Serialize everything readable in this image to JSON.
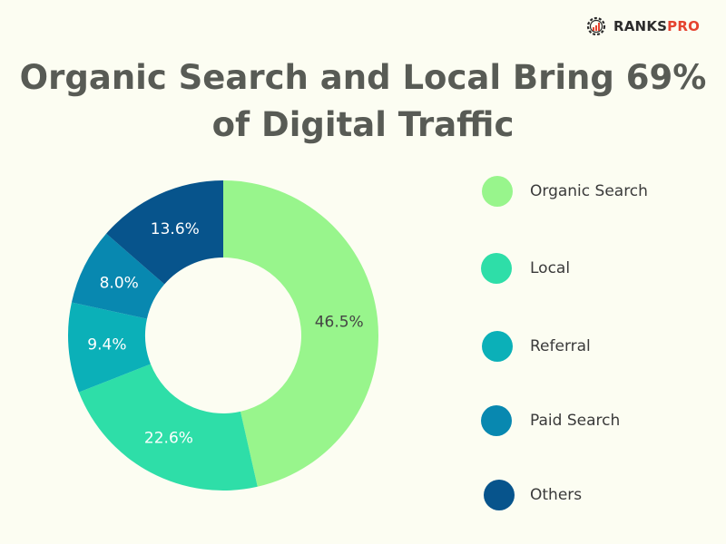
{
  "brand": {
    "name_prefix": "RANKS",
    "name_suffix": "PRO",
    "logo_icon": "gear-chart-icon",
    "accent_color": "#e5432f"
  },
  "title": {
    "line1": "Organic Search and Local Bring 69%",
    "line2": "of Digital Traffic"
  },
  "chart_data": {
    "type": "pie",
    "variant": "donut",
    "title": "Organic Search and Local Bring 69% of Digital Traffic",
    "categories": [
      "Organic Search",
      "Local",
      "Referral",
      "Paid Search",
      "Others"
    ],
    "values": [
      46.5,
      22.6,
      9.4,
      8.0,
      13.6
    ],
    "value_labels": [
      "46.5%",
      "22.6%",
      "9.4%",
      "8.0%",
      "13.6%"
    ],
    "colors": [
      "#98f58c",
      "#2edea8",
      "#0bb0b8",
      "#0888b0",
      "#07548c"
    ],
    "label_colors": [
      "#444444",
      "#ffffff",
      "#ffffff",
      "#ffffff",
      "#ffffff"
    ],
    "legend_position": "right"
  }
}
